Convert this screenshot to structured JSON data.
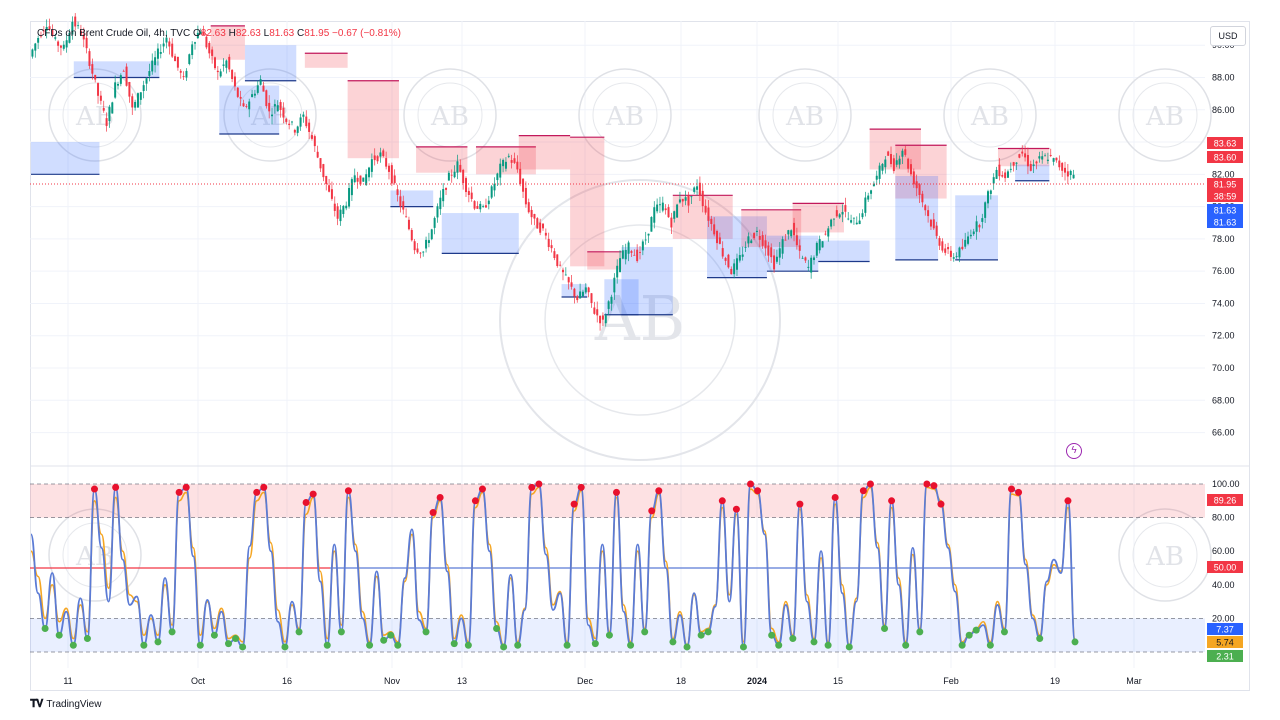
{
  "legend": {
    "symbol": "CFDs on Brent Crude Oil, 4h, TVC",
    "o_label": "O",
    "o_val": "82.63",
    "h_label": "H",
    "h_val": "82.63",
    "l_label": "L",
    "l_val": "81.63",
    "c_label": "C",
    "c_val": "81.95",
    "change": "−0.67 (−0.81%)"
  },
  "currency": "USD",
  "brand": "TradingView",
  "watermark": "AB",
  "colors": {
    "up": "#089981",
    "down": "#f23645",
    "zone_red": "rgba(242,54,69,0.22)",
    "zone_blue": "rgba(41,98,255,0.22)",
    "k_line": "#5b7bd5",
    "d_line": "#f5a623",
    "grid": "#f0f3fa"
  },
  "chart_data": [
    {
      "type": "candlestick",
      "title": "",
      "ylim": [
        64.3,
        91.5
      ],
      "y_ticks": [
        "90.00",
        "88.00",
        "86.00",
        "84.00",
        "82.00",
        "80.00",
        "78.00",
        "76.00",
        "74.00",
        "72.00",
        "70.00",
        "68.00",
        "66.00"
      ],
      "x_ticks": [
        "11",
        "Oct",
        "16",
        "Nov",
        "13",
        "Dec",
        "18",
        "2024",
        "15",
        "Feb",
        "19",
        "Mar"
      ],
      "price_badges": [
        {
          "value": "83.63",
          "color": "#f23645"
        },
        {
          "value": "83.60",
          "color": "#f23645"
        },
        {
          "value": "81.95",
          "color": "#f23645"
        },
        {
          "value": "38:59",
          "color": "#f23645"
        },
        {
          "value": "81.63",
          "color": "#2962ff"
        },
        {
          "value": "81.63",
          "color": "#2962ff"
        }
      ],
      "close_path": [
        89.3,
        90.5,
        91.4,
        90.2,
        89.8,
        91.5,
        90.8,
        89.0,
        86.9,
        85.2,
        87.5,
        88.6,
        86.0,
        87.2,
        88.4,
        89.5,
        90.5,
        89.0,
        87.8,
        90.2,
        91.0,
        89.5,
        88.2,
        89.0,
        87.3,
        86.0,
        86.9,
        87.8,
        85.8,
        86.4,
        85.4,
        84.8,
        85.6,
        84.2,
        82.5,
        80.8,
        79.3,
        80.3,
        82.0,
        81.5,
        82.9,
        83.2,
        82.3,
        80.6,
        79.2,
        77.5,
        77.2,
        78.6,
        80.4,
        81.8,
        82.6,
        81.2,
        80.1,
        79.8,
        81.0,
        82.4,
        83.1,
        82.3,
        80.2,
        79.0,
        78.5,
        77.4,
        76.1,
        75.2,
        74.3,
        74.9,
        73.5,
        72.8,
        74.7,
        76.8,
        77.5,
        76.9,
        78.0,
        79.8,
        80.1,
        79.0,
        80.6,
        80.3,
        81.4,
        79.7,
        78.5,
        77.1,
        76.0,
        76.8,
        78.0,
        78.4,
        77.6,
        76.4,
        77.8,
        78.7,
        77.0,
        76.2,
        77.5,
        78.3,
        79.5,
        79.8,
        79.0,
        79.3,
        80.8,
        81.8,
        83.2,
        82.5,
        83.6,
        82.0,
        80.8,
        79.4,
        78.1,
        77.2,
        76.9,
        77.4,
        78.5,
        79.0,
        80.7,
        82.3,
        81.9,
        82.8,
        83.3,
        82.4,
        82.9,
        83.1,
        82.7,
        82.2,
        81.95
      ],
      "zones": [
        {
          "kind": "blue",
          "x0": 0,
          "x1": 8,
          "top": 84.0,
          "bottom": 82.0
        },
        {
          "kind": "blue",
          "x0": 5,
          "x1": 15,
          "top": 89.0,
          "bottom": 88.0
        },
        {
          "kind": "red",
          "x0": 21,
          "x1": 25,
          "top": 91.2,
          "bottom": 89.1
        },
        {
          "kind": "blue",
          "x0": 22,
          "x1": 29,
          "top": 87.5,
          "bottom": 84.5
        },
        {
          "kind": "blue",
          "x0": 25,
          "x1": 31,
          "top": 90.0,
          "bottom": 87.8
        },
        {
          "kind": "red",
          "x0": 32,
          "x1": 37,
          "top": 89.5,
          "bottom": 88.6
        },
        {
          "kind": "red",
          "x0": 37,
          "x1": 43,
          "top": 87.8,
          "bottom": 83.0
        },
        {
          "kind": "blue",
          "x0": 42,
          "x1": 47,
          "top": 81.0,
          "bottom": 80.0
        },
        {
          "kind": "red",
          "x0": 45,
          "x1": 51,
          "top": 83.7,
          "bottom": 82.1
        },
        {
          "kind": "blue",
          "x0": 48,
          "x1": 57,
          "top": 79.6,
          "bottom": 77.1
        },
        {
          "kind": "red",
          "x0": 52,
          "x1": 59,
          "top": 83.7,
          "bottom": 82.0
        },
        {
          "kind": "red",
          "x0": 57,
          "x1": 63,
          "top": 84.4,
          "bottom": 82.3
        },
        {
          "kind": "red",
          "x0": 63,
          "x1": 67,
          "top": 84.3,
          "bottom": 76.3
        },
        {
          "kind": "blue",
          "x0": 62,
          "x1": 65,
          "top": 75.2,
          "bottom": 74.4
        },
        {
          "kind": "red",
          "x0": 65,
          "x1": 69,
          "top": 77.2,
          "bottom": 76.1
        },
        {
          "kind": "blue",
          "x0": 67,
          "x1": 71,
          "top": 75.5,
          "bottom": 73.3
        },
        {
          "kind": "blue",
          "x0": 69,
          "x1": 75,
          "top": 77.5,
          "bottom": 73.3
        },
        {
          "kind": "red",
          "x0": 75,
          "x1": 82,
          "top": 80.7,
          "bottom": 78.0
        },
        {
          "kind": "blue",
          "x0": 79,
          "x1": 86,
          "top": 79.4,
          "bottom": 75.6
        },
        {
          "kind": "red",
          "x0": 83,
          "x1": 90,
          "top": 79.8,
          "bottom": 77.5
        },
        {
          "kind": "red",
          "x0": 89,
          "x1": 95,
          "top": 80.2,
          "bottom": 78.4
        },
        {
          "kind": "blue",
          "x0": 86,
          "x1": 92,
          "top": 78.2,
          "bottom": 76.0
        },
        {
          "kind": "blue",
          "x0": 92,
          "x1": 98,
          "top": 77.9,
          "bottom": 76.6
        },
        {
          "kind": "red",
          "x0": 98,
          "x1": 104,
          "top": 84.8,
          "bottom": 82.3
        },
        {
          "kind": "red",
          "x0": 101,
          "x1": 107,
          "top": 83.8,
          "bottom": 80.5
        },
        {
          "kind": "blue",
          "x0": 101,
          "x1": 106,
          "top": 81.9,
          "bottom": 76.7
        },
        {
          "kind": "blue",
          "x0": 108,
          "x1": 113,
          "top": 80.7,
          "bottom": 76.7
        },
        {
          "kind": "red",
          "x0": 113,
          "x1": 119,
          "top": 83.6,
          "bottom": 82.5
        },
        {
          "kind": "blue",
          "x0": 115,
          "x1": 119,
          "top": 82.6,
          "bottom": 81.6
        }
      ]
    },
    {
      "type": "line",
      "title": "",
      "ylim": [
        0,
        100
      ],
      "y_ticks": [
        "100.00",
        "80.00",
        "60.00",
        "40.00",
        "20.00"
      ],
      "levels": {
        "upper": 80,
        "middle": 50,
        "lower": 20,
        "min": 0,
        "max": 100
      },
      "value_badges": [
        {
          "value": "89.26",
          "color": "#f23645"
        },
        {
          "value": "50.00",
          "color": "#f23645"
        },
        {
          "value": "7.37",
          "color": "#2962ff"
        },
        {
          "value": "5.74",
          "color": "#f5a623"
        },
        {
          "value": "2.31",
          "color": "#4caf50"
        }
      ],
      "series": [
        {
          "key": "k",
          "values": [
            70,
            35,
            14,
            47,
            10,
            24,
            4,
            32,
            8,
            97,
            62,
            30,
            98,
            55,
            28,
            33,
            4,
            22,
            6,
            44,
            12,
            95,
            98,
            57,
            4,
            31,
            10,
            24,
            5,
            8,
            3,
            63,
            95,
            98,
            60,
            18,
            3,
            30,
            12,
            89,
            94,
            42,
            4,
            64,
            12,
            96,
            60,
            20,
            4,
            48,
            7,
            10,
            4,
            44,
            73,
            19,
            12,
            83,
            92,
            48,
            5,
            20,
            4,
            90,
            97,
            60,
            14,
            3,
            46,
            4,
            25,
            98,
            100,
            58,
            25,
            35,
            4,
            88,
            98,
            16,
            5,
            64,
            10,
            95,
            24,
            4,
            64,
            12,
            84,
            96,
            50,
            6,
            22,
            3,
            35,
            10,
            12,
            27,
            90,
            30,
            85,
            3,
            100,
            96,
            70,
            10,
            4,
            28,
            8,
            88,
            30,
            6,
            60,
            4,
            92,
            35,
            3,
            30,
            96,
            100,
            62,
            14,
            90,
            40,
            4,
            62,
            12,
            100,
            99,
            88,
            62,
            36,
            4,
            10,
            13,
            16,
            4,
            28,
            12,
            97,
            95,
            52,
            20,
            8,
            42,
            55,
            47,
            90,
            6
          ]
        },
        {
          "key": "d",
          "values": [
            60,
            45,
            20,
            40,
            18,
            26,
            8,
            28,
            12,
            90,
            70,
            38,
            92,
            60,
            34,
            30,
            10,
            20,
            10,
            40,
            16,
            90,
            95,
            62,
            10,
            30,
            14,
            26,
            8,
            10,
            6,
            56,
            90,
            95,
            65,
            25,
            6,
            28,
            14,
            82,
            92,
            48,
            8,
            60,
            16,
            92,
            64,
            24,
            6,
            45,
            10,
            12,
            6,
            42,
            70,
            24,
            14,
            80,
            90,
            52,
            8,
            22,
            6,
            86,
            95,
            64,
            18,
            4,
            44,
            6,
            26,
            94,
            98,
            62,
            28,
            36,
            6,
            84,
            96,
            20,
            8,
            60,
            12,
            92,
            28,
            6,
            60,
            14,
            80,
            94,
            54,
            8,
            24,
            4,
            34,
            12,
            14,
            28,
            86,
            34,
            82,
            6,
            97,
            94,
            72,
            14,
            6,
            30,
            10,
            85,
            34,
            8,
            56,
            6,
            88,
            40,
            4,
            32,
            92,
            98,
            65,
            16,
            86,
            44,
            6,
            58,
            14,
            98,
            97,
            90,
            64,
            40,
            6,
            10,
            14,
            18,
            6,
            30,
            14,
            94,
            93,
            55,
            22,
            10,
            40,
            52,
            48,
            86,
            8
          ]
        }
      ]
    }
  ]
}
